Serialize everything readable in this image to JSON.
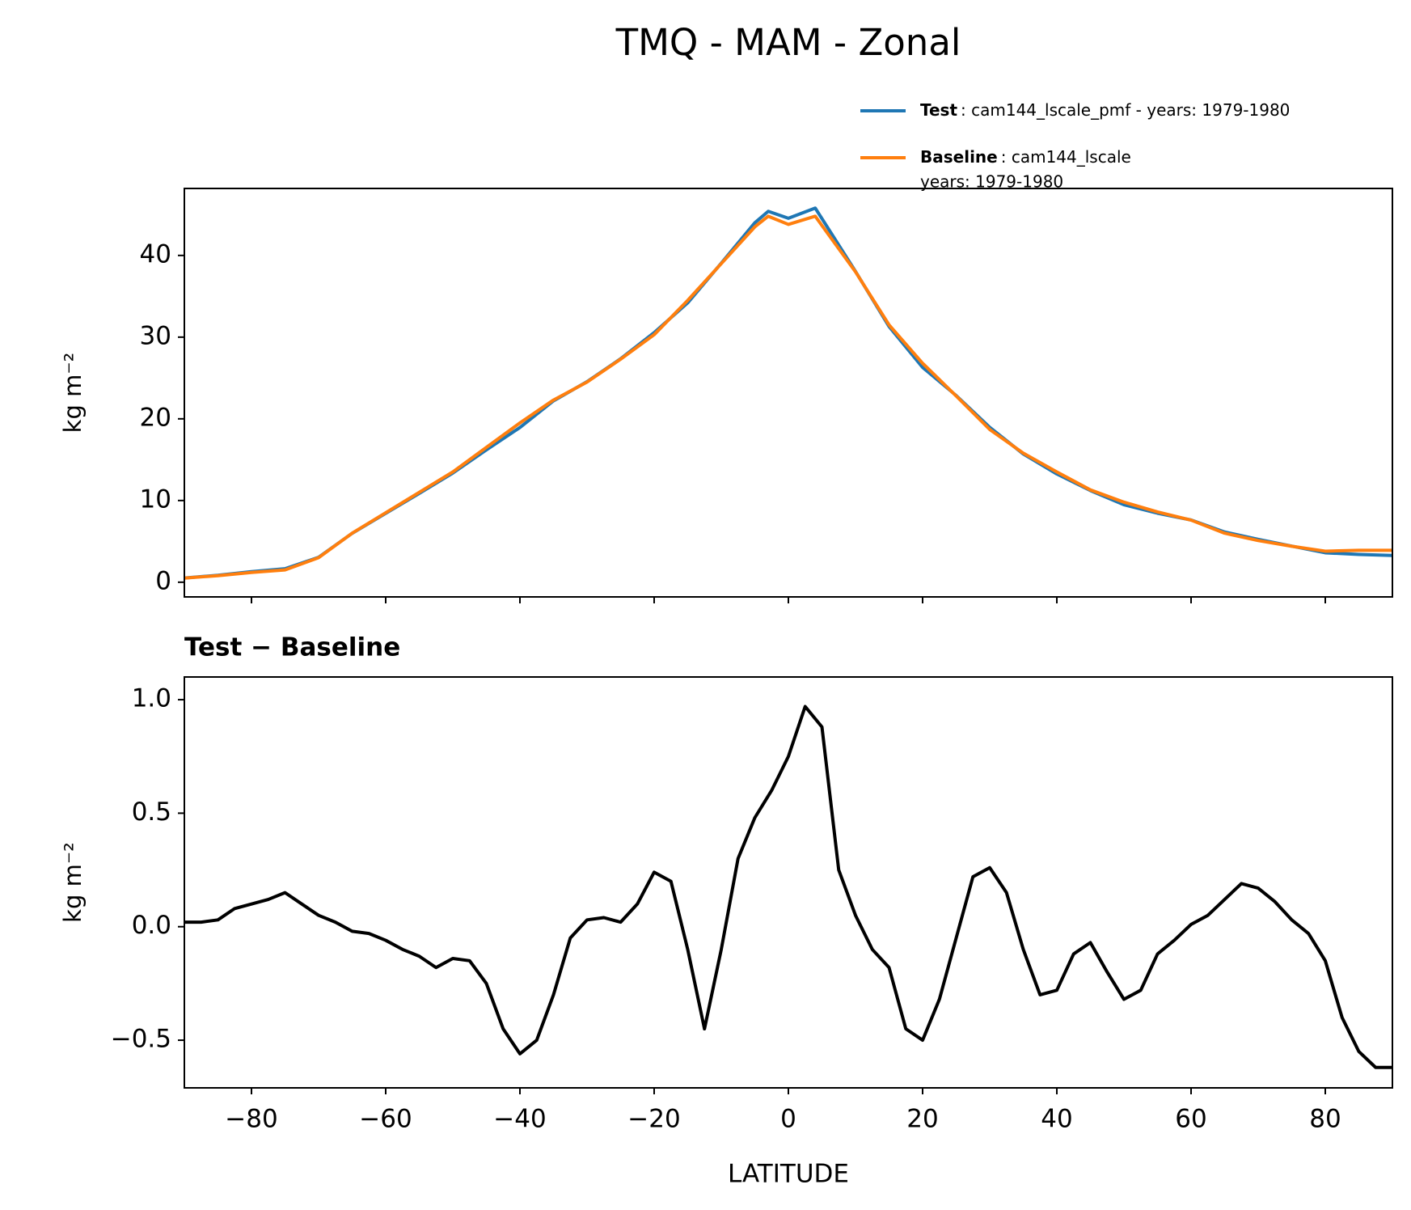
{
  "title": "TMQ - MAM - Zonal",
  "chart_data": [
    {
      "type": "line",
      "ylabel": "kg m⁻²",
      "xlim": [
        -90,
        90
      ],
      "ylim": [
        -1.8,
        48.2
      ],
      "xticks": [
        -80,
        -60,
        -40,
        -20,
        0,
        20,
        40,
        60,
        80
      ],
      "yticks": [
        0,
        10,
        20,
        30,
        40
      ],
      "x": [
        -90,
        -85,
        -80,
        -75,
        -70,
        -65,
        -60,
        -55,
        -50,
        -45,
        -40,
        -35,
        -30,
        -25,
        -20,
        -15,
        -10,
        -5,
        -3,
        0,
        4,
        10,
        15,
        20,
        25,
        30,
        35,
        40,
        45,
        50,
        55,
        60,
        65,
        70,
        75,
        80,
        85,
        90
      ],
      "series": [
        {
          "name": "Test",
          "description": [
            ": cam144_lscale_pmf - years: 1979-1980"
          ],
          "color": "#1f77b4",
          "values": [
            0.52,
            0.85,
            1.3,
            1.65,
            3.05,
            5.98,
            8.43,
            10.87,
            13.36,
            16.2,
            18.94,
            22.2,
            24.55,
            27.35,
            30.55,
            34.2,
            39.05,
            44.0,
            45.4,
            44.55,
            45.8,
            38.05,
            31.3,
            26.3,
            22.85,
            18.96,
            15.7,
            13.25,
            11.22,
            9.48,
            8.45,
            7.62,
            6.15,
            5.25,
            4.42,
            3.6,
            3.4,
            3.28
          ]
        },
        {
          "name": "Baseline",
          "description": [
            ": cam144_lscale",
            "years: 1979-1980"
          ],
          "color": "#ff7f0e",
          "values": [
            0.5,
            0.8,
            1.2,
            1.5,
            3.0,
            6.0,
            8.5,
            11.0,
            13.5,
            16.5,
            19.5,
            22.3,
            24.5,
            27.3,
            30.3,
            34.5,
            39.0,
            43.5,
            44.8,
            43.8,
            44.8,
            38.0,
            31.5,
            26.8,
            22.8,
            18.7,
            15.8,
            13.5,
            11.3,
            9.8,
            8.6,
            7.6,
            6.0,
            5.1,
            4.4,
            3.8,
            3.9,
            3.9
          ]
        }
      ]
    },
    {
      "type": "line",
      "title": "Test − Baseline",
      "xlabel": "LATITUDE",
      "ylabel": "kg m⁻²",
      "xlim": [
        -90,
        90
      ],
      "ylim": [
        -0.71,
        1.1
      ],
      "xticks": [
        {
          "value": -80,
          "label": "−80"
        },
        {
          "value": -60,
          "label": "−60"
        },
        {
          "value": -40,
          "label": "−40"
        },
        {
          "value": -20,
          "label": "−20"
        },
        0,
        20,
        40,
        60,
        80
      ],
      "yticks": [
        {
          "value": -0.5,
          "label": "−0.5"
        },
        {
          "value": 0,
          "label": "0.0"
        },
        0.5,
        {
          "value": 1,
          "label": "1.0"
        }
      ],
      "x": [
        -90,
        -87.5,
        -85,
        -82.5,
        -80,
        -77.5,
        -75,
        -72.5,
        -70,
        -67.5,
        -65,
        -62.5,
        -60,
        -57.5,
        -55,
        -52.5,
        -50,
        -47.5,
        -45,
        -42.5,
        -40,
        -37.5,
        -35,
        -32.5,
        -30,
        -27.5,
        -25,
        -22.5,
        -20,
        -17.5,
        -15,
        -12.5,
        -10,
        -7.5,
        -5,
        -2.5,
        0,
        2.5,
        5,
        7.5,
        10,
        12.5,
        15,
        17.5,
        20,
        22.5,
        25,
        27.5,
        30,
        32.5,
        35,
        37.5,
        40,
        42.5,
        45,
        47.5,
        50,
        52.5,
        55,
        57.5,
        60,
        62.5,
        65,
        67.5,
        70,
        72.5,
        75,
        77.5,
        80,
        82.5,
        85,
        87.5,
        90
      ],
      "series": [
        {
          "name": "Test − Baseline",
          "color": "#000000",
          "values": [
            0.02,
            0.02,
            0.03,
            0.08,
            0.1,
            0.12,
            0.15,
            0.1,
            0.05,
            0.02,
            -0.02,
            -0.03,
            -0.06,
            -0.1,
            -0.13,
            -0.18,
            -0.14,
            -0.15,
            -0.25,
            -0.45,
            -0.56,
            -0.5,
            -0.3,
            -0.05,
            0.03,
            0.04,
            0.02,
            0.1,
            0.24,
            0.2,
            -0.1,
            -0.45,
            -0.1,
            0.3,
            0.48,
            0.6,
            0.75,
            0.97,
            0.88,
            0.25,
            0.05,
            -0.1,
            -0.18,
            -0.45,
            -0.5,
            -0.32,
            -0.05,
            0.22,
            0.26,
            0.15,
            -0.1,
            -0.3,
            -0.28,
            -0.12,
            -0.07,
            -0.2,
            -0.32,
            -0.28,
            -0.12,
            -0.06,
            0.01,
            0.05,
            0.12,
            0.19,
            0.17,
            0.11,
            0.03,
            -0.03,
            -0.15,
            -0.4,
            -0.55,
            -0.62,
            -0.62
          ]
        }
      ]
    }
  ]
}
